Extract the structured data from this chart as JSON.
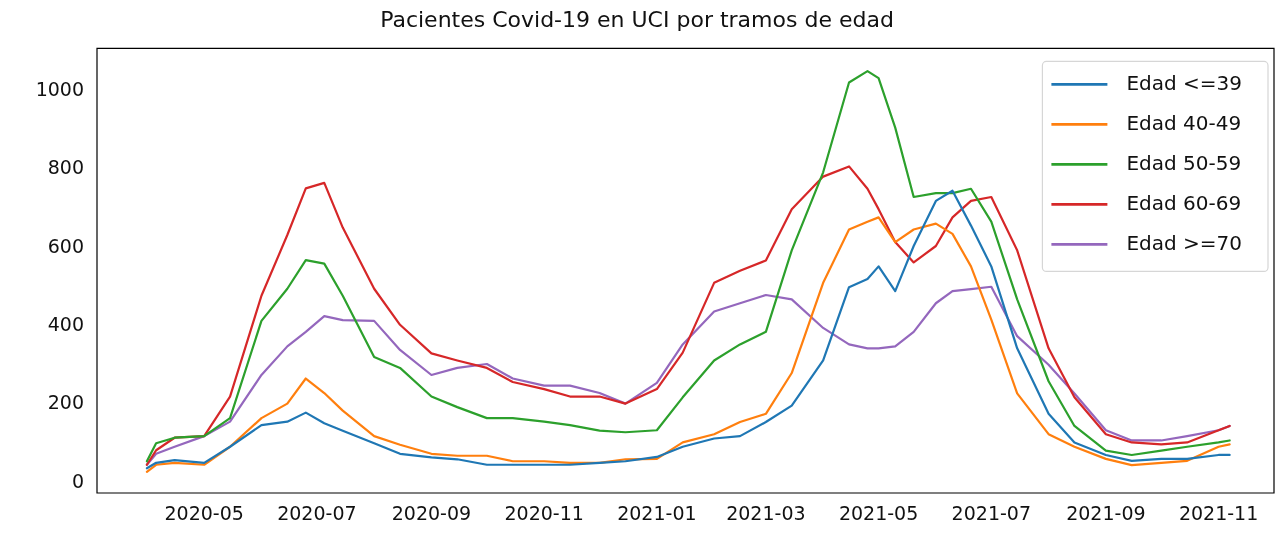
{
  "chart_data": {
    "type": "line",
    "title": "Pacientes Covid-19 en UCI por tramos de edad",
    "x": [
      "2020-03-31",
      "2020-04-05",
      "2020-04-15",
      "2020-05-01",
      "2020-05-15",
      "2020-06-01",
      "2020-06-15",
      "2020-06-25",
      "2020-07-05",
      "2020-07-15",
      "2020-08-01",
      "2020-08-15",
      "2020-09-01",
      "2020-09-15",
      "2020-10-01",
      "2020-10-15",
      "2020-11-01",
      "2020-11-15",
      "2020-12-01",
      "2020-12-15",
      "2021-01-01",
      "2021-01-15",
      "2021-02-01",
      "2021-02-15",
      "2021-03-01",
      "2021-03-15",
      "2021-04-01",
      "2021-04-15",
      "2021-04-25",
      "2021-05-01",
      "2021-05-10",
      "2021-05-20",
      "2021-06-01",
      "2021-06-10",
      "2021-06-20",
      "2021-07-01",
      "2021-07-15",
      "2021-08-01",
      "2021-08-15",
      "2021-09-01",
      "2021-09-15",
      "2021-10-01",
      "2021-10-15",
      "2021-11-01",
      "2021-11-07"
    ],
    "series": [
      {
        "name": "Edad <=39",
        "color": "#1f77b4",
        "values": [
          37,
          51,
          58,
          51,
          92,
          147,
          156,
          179,
          152,
          133,
          101,
          74,
          65,
          60,
          46,
          46,
          46,
          46,
          51,
          55,
          66,
          92,
          113,
          119,
          155,
          197,
          312,
          499,
          520,
          552,
          489,
          604,
          719,
          745,
          656,
          552,
          343,
          176,
          103,
          71,
          56,
          61,
          61,
          71,
          71
        ]
      },
      {
        "name": "Edad 40-49",
        "color": "#ff7f0e",
        "values": [
          28,
          46,
          51,
          46,
          92,
          165,
          202,
          266,
          229,
          184,
          119,
          97,
          74,
          69,
          69,
          55,
          55,
          51,
          51,
          60,
          61,
          103,
          124,
          155,
          176,
          280,
          510,
          646,
          666,
          677,
          614,
          646,
          661,
          635,
          552,
          416,
          228,
          124,
          92,
          61,
          45,
          51,
          56,
          92,
          98
        ]
      },
      {
        "name": "Edad 50-59",
        "color": "#2ca02c",
        "values": [
          55,
          101,
          115,
          119,
          165,
          413,
          495,
          568,
          559,
          477,
          321,
          293,
          220,
          193,
          165,
          165,
          156,
          147,
          133,
          129,
          134,
          218,
          312,
          353,
          385,
          593,
          792,
          1021,
          1050,
          1032,
          906,
          729,
          739,
          739,
          750,
          666,
          468,
          259,
          145,
          82,
          71,
          82,
          92,
          103,
          108
        ]
      },
      {
        "name": "Edad 60-69",
        "color": "#d62728",
        "values": [
          46,
          83,
          115,
          119,
          220,
          477,
          632,
          751,
          765,
          651,
          495,
          403,
          330,
          312,
          293,
          257,
          239,
          220,
          220,
          202,
          239,
          332,
          510,
          541,
          567,
          698,
          781,
          807,
          750,
          698,
          614,
          562,
          604,
          677,
          719,
          729,
          593,
          343,
          218,
          124,
          103,
          98,
          103,
          134,
          145
        ]
      },
      {
        "name": "Edad >=70",
        "color": "#9467bd",
        "values": [
          46,
          74,
          92,
          119,
          156,
          275,
          348,
          385,
          425,
          415,
          413,
          339,
          275,
          293,
          303,
          266,
          248,
          248,
          229,
          202,
          255,
          353,
          437,
          458,
          479,
          468,
          395,
          353,
          343,
          343,
          348,
          385,
          458,
          489,
          494,
          500,
          374,
          301,
          228,
          134,
          108,
          108,
          119,
          134,
          145
        ]
      }
    ],
    "xlim": [
      "2020-03-04",
      "2021-12-01"
    ],
    "xticks": [
      "2020-05",
      "2020-07",
      "2020-09",
      "2020-11",
      "2021-01",
      "2021-03",
      "2021-05",
      "2021-07",
      "2021-09",
      "2021-11"
    ],
    "ylim": [
      -26,
      1108
    ],
    "yticks": [
      0,
      200,
      400,
      600,
      800,
      1000
    ],
    "grid": false,
    "legend": "top right",
    "marker": "none",
    "line_style": "solid"
  }
}
